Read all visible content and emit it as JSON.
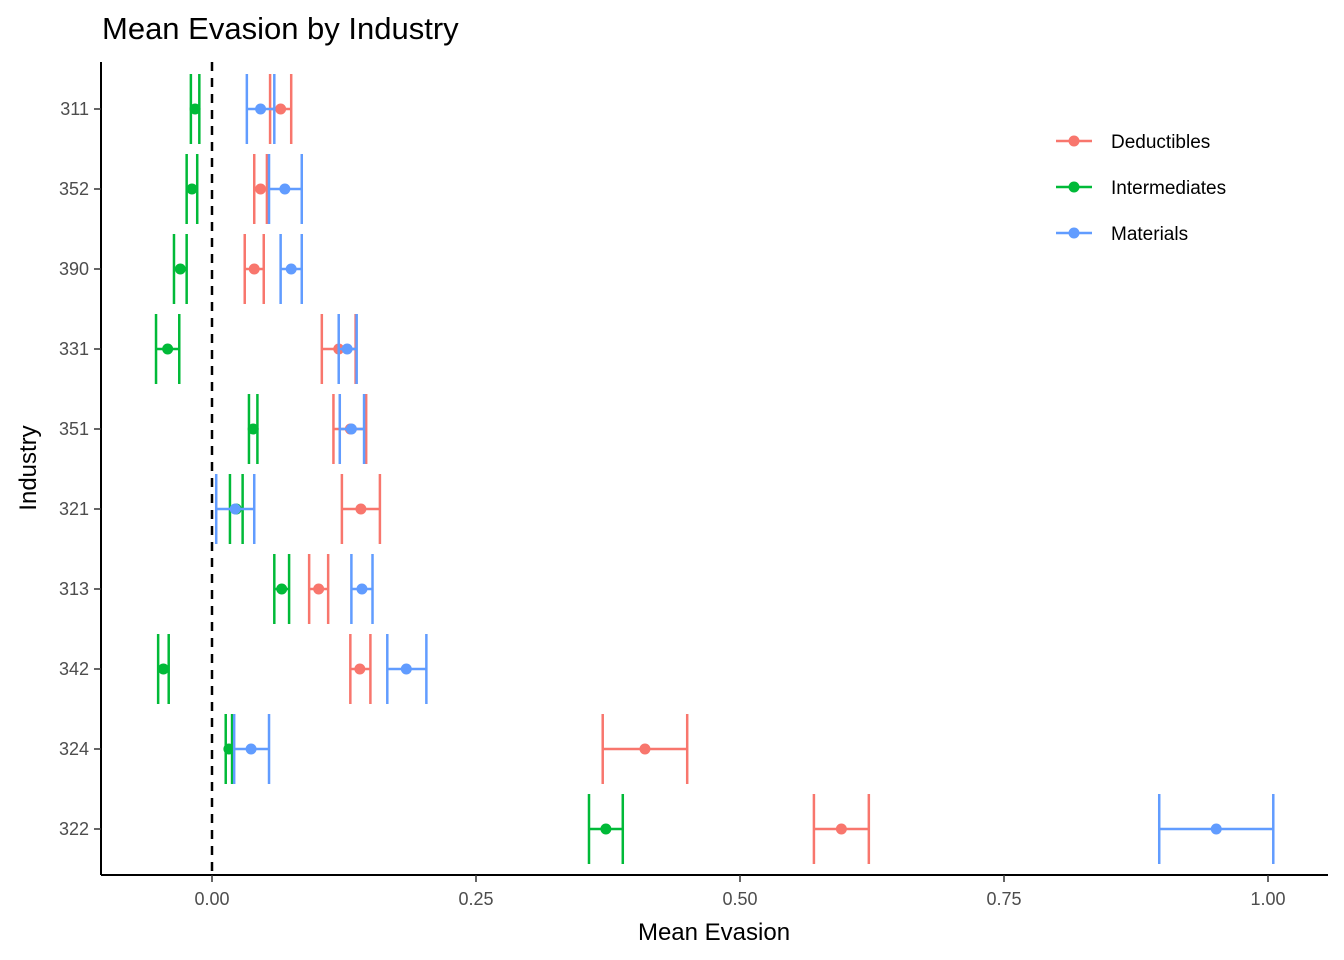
{
  "chart_data": {
    "type": "errorbar",
    "title": "Mean Evasion by Industry",
    "xlabel": "Mean Evasion",
    "ylabel": "Industry",
    "xlim": [
      -0.105,
      1.055
    ],
    "xticks": [
      0.0,
      0.25,
      0.5,
      0.75,
      1.0
    ],
    "xtick_labels": [
      "0.00",
      "0.25",
      "0.50",
      "0.75",
      "1.00"
    ],
    "reference_line": {
      "x": 0,
      "style": "dashed"
    },
    "categories": [
      "311",
      "352",
      "390",
      "331",
      "351",
      "321",
      "313",
      "342",
      "324",
      "322"
    ],
    "legend_position": "top-right",
    "series": [
      {
        "name": "Deductibles",
        "color": "#F8766D",
        "mean": [
          0.065,
          0.046,
          0.04,
          0.12,
          0.131,
          0.141,
          0.101,
          0.14,
          0.41,
          0.596
        ],
        "lower": [
          0.055,
          0.04,
          0.031,
          0.104,
          0.115,
          0.123,
          0.092,
          0.131,
          0.37,
          0.57
        ],
        "upper": [
          0.075,
          0.052,
          0.049,
          0.136,
          0.146,
          0.159,
          0.11,
          0.15,
          0.45,
          0.622
        ]
      },
      {
        "name": "Intermediates",
        "color": "#00BA38",
        "mean": [
          -0.016,
          -0.019,
          -0.03,
          -0.042,
          0.039,
          0.023,
          0.066,
          -0.046,
          0.016,
          0.373
        ],
        "lower": [
          -0.02,
          -0.024,
          -0.036,
          -0.053,
          0.035,
          0.017,
          0.059,
          -0.051,
          0.013,
          0.357
        ],
        "upper": [
          -0.012,
          -0.014,
          -0.024,
          -0.031,
          0.043,
          0.029,
          0.073,
          -0.041,
          0.019,
          0.389
        ]
      },
      {
        "name": "Materials",
        "color": "#619CFF",
        "mean": [
          0.046,
          0.069,
          0.075,
          0.128,
          0.132,
          0.022,
          0.142,
          0.184,
          0.037,
          0.951
        ],
        "lower": [
          0.033,
          0.054,
          0.065,
          0.12,
          0.121,
          0.004,
          0.132,
          0.166,
          0.021,
          0.897
        ],
        "upper": [
          0.059,
          0.085,
          0.085,
          0.137,
          0.144,
          0.04,
          0.152,
          0.203,
          0.054,
          1.005
        ]
      }
    ]
  }
}
